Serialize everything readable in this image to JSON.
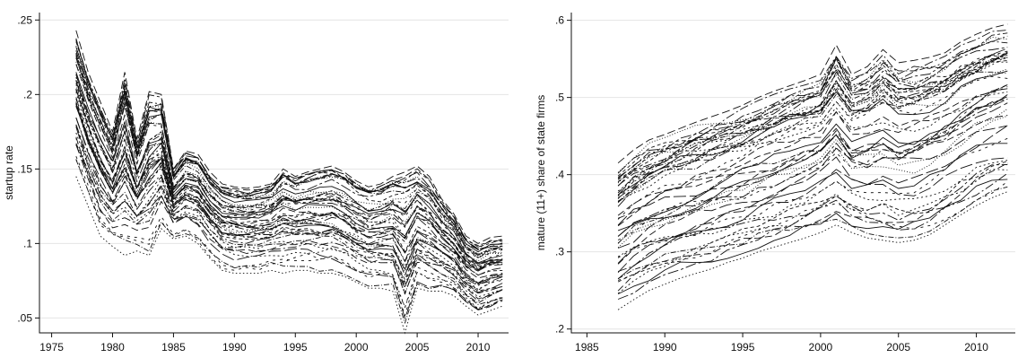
{
  "chart_data": [
    {
      "type": "line",
      "ylabel": "startup rate",
      "xlabel": "",
      "xlim": [
        1974,
        2012.5
      ],
      "ylim": [
        0.04,
        0.255
      ],
      "xticks": [
        1975,
        1980,
        1985,
        1990,
        1995,
        2000,
        2005,
        2010
      ],
      "xtick_labels": [
        "1975",
        "1980",
        "1985",
        "1990",
        "1995",
        "2000",
        "2005",
        "2010"
      ],
      "yticks": [
        0.05,
        0.1,
        0.15,
        0.2,
        0.25
      ],
      "ytick_labels": [
        ".05",
        ".1",
        ".15",
        ".2",
        ".25"
      ],
      "grid": "horizontal",
      "series_count": 50,
      "series_note": "one line per US state, years 1977-2012",
      "envelope": {
        "x": [
          1977,
          1978,
          1979,
          1980,
          1981,
          1982,
          1983,
          1984,
          1985,
          1986,
          1987,
          1988,
          1989,
          1990,
          1991,
          1992,
          1993,
          1994,
          1995,
          1996,
          1997,
          1998,
          1999,
          2000,
          2001,
          2002,
          2003,
          2004,
          2005,
          2006,
          2007,
          2008,
          2009,
          2010,
          2011,
          2012
        ],
        "upper": [
          0.243,
          0.215,
          0.195,
          0.175,
          0.215,
          0.17,
          0.202,
          0.2,
          0.15,
          0.162,
          0.16,
          0.148,
          0.14,
          0.138,
          0.137,
          0.138,
          0.14,
          0.15,
          0.145,
          0.148,
          0.15,
          0.152,
          0.148,
          0.142,
          0.138,
          0.14,
          0.145,
          0.148,
          0.152,
          0.145,
          0.13,
          0.12,
          0.105,
          0.1,
          0.104,
          0.105
        ],
        "lower": [
          0.145,
          0.125,
          0.105,
          0.098,
          0.092,
          0.095,
          0.092,
          0.11,
          0.103,
          0.105,
          0.1,
          0.09,
          0.082,
          0.08,
          0.08,
          0.08,
          0.082,
          0.08,
          0.082,
          0.082,
          0.08,
          0.08,
          0.078,
          0.074,
          0.07,
          0.07,
          0.068,
          0.04,
          0.07,
          0.068,
          0.068,
          0.065,
          0.058,
          0.052,
          0.055,
          0.058
        ]
      }
    },
    {
      "type": "line",
      "ylabel": "mature (11+) share of state firms",
      "xlabel": "",
      "xlim": [
        1984,
        2012.5
      ],
      "ylim": [
        0.195,
        0.61
      ],
      "xticks": [
        1985,
        1990,
        1995,
        2000,
        2005,
        2010
      ],
      "xtick_labels": [
        "1985",
        "1990",
        "1995",
        "2000",
        "2005",
        "2010"
      ],
      "yticks": [
        0.2,
        0.3,
        0.4,
        0.5,
        0.6
      ],
      "ytick_labels": [
        ".2",
        ".3",
        ".4",
        ".5",
        ".6"
      ],
      "grid": "horizontal",
      "series_count": 50,
      "series_note": "one line per US state, years 1987-2012",
      "envelope": {
        "x": [
          1987,
          1988,
          1989,
          1990,
          1991,
          1992,
          1993,
          1994,
          1995,
          1996,
          1997,
          1998,
          1999,
          2000,
          2001,
          2002,
          2003,
          2004,
          2005,
          2006,
          2007,
          2008,
          2009,
          2010,
          2011,
          2012
        ],
        "upper": [
          0.415,
          0.432,
          0.445,
          0.452,
          0.46,
          0.468,
          0.475,
          0.482,
          0.49,
          0.5,
          0.508,
          0.515,
          0.522,
          0.53,
          0.568,
          0.53,
          0.54,
          0.562,
          0.545,
          0.548,
          0.552,
          0.558,
          0.572,
          0.582,
          0.59,
          0.595
        ],
        "lower": [
          0.225,
          0.238,
          0.25,
          0.258,
          0.266,
          0.272,
          0.278,
          0.286,
          0.292,
          0.3,
          0.306,
          0.312,
          0.318,
          0.325,
          0.335,
          0.325,
          0.318,
          0.315,
          0.312,
          0.315,
          0.322,
          0.335,
          0.348,
          0.36,
          0.37,
          0.378
        ]
      }
    }
  ]
}
